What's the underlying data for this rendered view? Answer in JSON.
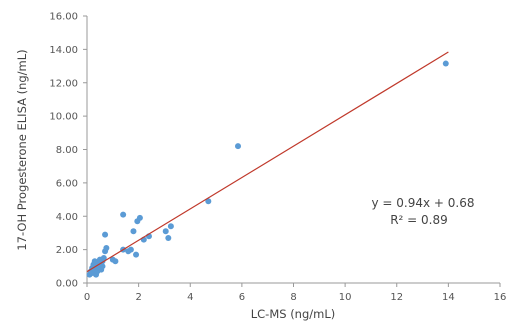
{
  "chart_data": {
    "type": "scatter",
    "xlabel": "LC-MS (ng/mL)",
    "ylabel": "17-OH Progesterone ELISA (ng/mL)",
    "xlim": [
      0,
      16
    ],
    "ylim": [
      0,
      16
    ],
    "x_ticks": [
      "0",
      "2",
      "4",
      "6",
      "8",
      "10",
      "12",
      "14",
      "16"
    ],
    "y_ticks": [
      "0.00",
      "2.00",
      "4.00",
      "6.00",
      "8.00",
      "10.00",
      "12.00",
      "14.00",
      "16.00"
    ],
    "grid": false,
    "point_color": "#5b9bd5",
    "trendline": {
      "color": "#c0392b",
      "x": [
        0.0,
        14.0
      ],
      "y": [
        0.68,
        13.84
      ],
      "equation": "y = 0.94x + 0.68",
      "r_squared": "R² = 0.89"
    },
    "points": [
      [
        0.1,
        0.5
      ],
      [
        0.15,
        0.7
      ],
      [
        0.2,
        0.9
      ],
      [
        0.2,
        0.6
      ],
      [
        0.25,
        1.1
      ],
      [
        0.3,
        0.8
      ],
      [
        0.3,
        1.3
      ],
      [
        0.35,
        0.5
      ],
      [
        0.35,
        1.0
      ],
      [
        0.4,
        1.2
      ],
      [
        0.4,
        0.7
      ],
      [
        0.45,
        0.9
      ],
      [
        0.5,
        1.1
      ],
      [
        0.5,
        1.4
      ],
      [
        0.55,
        0.8
      ],
      [
        0.6,
        1.0
      ],
      [
        0.6,
        1.3
      ],
      [
        0.65,
        1.5
      ],
      [
        0.7,
        1.9
      ],
      [
        0.75,
        2.1
      ],
      [
        0.7,
        2.9
      ],
      [
        1.0,
        1.4
      ],
      [
        1.1,
        1.3
      ],
      [
        1.4,
        2.0
      ],
      [
        1.4,
        4.1
      ],
      [
        1.6,
        1.9
      ],
      [
        1.7,
        2.0
      ],
      [
        1.8,
        3.1
      ],
      [
        1.9,
        1.7
      ],
      [
        1.95,
        3.7
      ],
      [
        2.05,
        3.9
      ],
      [
        2.2,
        2.6
      ],
      [
        2.4,
        2.8
      ],
      [
        3.05,
        3.1
      ],
      [
        3.15,
        2.7
      ],
      [
        3.25,
        3.4
      ],
      [
        4.7,
        4.9
      ],
      [
        5.85,
        8.2
      ],
      [
        13.9,
        13.15
      ]
    ]
  }
}
